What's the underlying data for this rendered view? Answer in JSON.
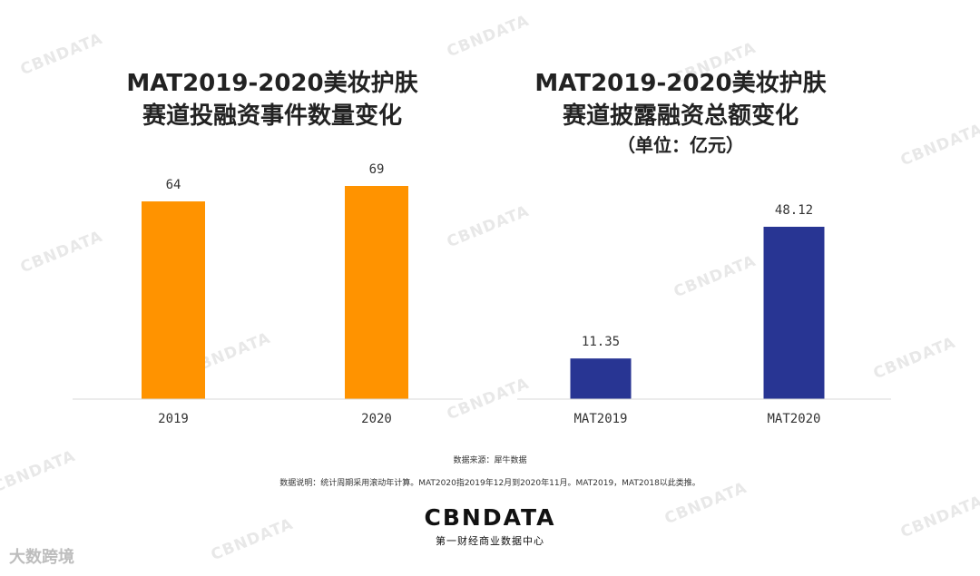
{
  "watermark_text": "CBNDATA",
  "chart_data": [
    {
      "type": "bar",
      "title_lines": [
        "MAT2019-2020美妆护肤",
        "赛道投融资事件数量变化"
      ],
      "subtitle": "",
      "categories": [
        "2019",
        "2020"
      ],
      "values": [
        64,
        69
      ],
      "value_labels": [
        "64",
        "69"
      ],
      "color": "#FF9300",
      "grid": false,
      "legend": "none"
    },
    {
      "type": "bar",
      "title_lines": [
        "MAT2019-2020美妆护肤",
        "赛道披露融资总额变化"
      ],
      "subtitle": "（单位：亿元）",
      "categories": [
        "MAT2019",
        "MAT2020"
      ],
      "values": [
        11.35,
        48.12
      ],
      "value_labels": [
        "11.35",
        "48.12"
      ],
      "color": "#283593",
      "grid": false,
      "legend": "none"
    }
  ],
  "footer": {
    "source": "数据来源：犀牛数据",
    "note": "数据说明：统计周期采用滚动年计算。MAT2020指2019年12月到2020年11月。MAT2019，MAT2018以此类推。",
    "logo": "CBNDATA",
    "logo_subtitle": "第一财经商业数据中心",
    "platform_watermark": "大数跨境"
  }
}
